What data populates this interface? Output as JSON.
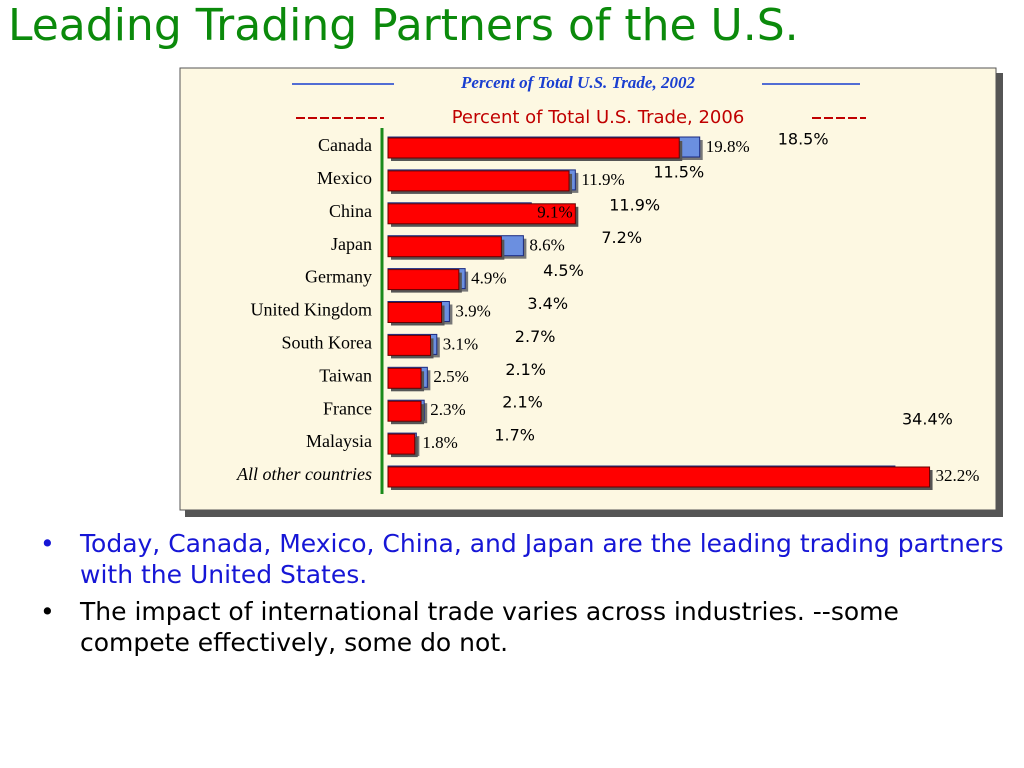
{
  "slide": {
    "title": "Leading Trading Partners of the U.S.",
    "bullets": [
      "Today, Canada, Mexico, China, and Japan are the leading trading partners with the United States.",
      "The impact of international trade varies across industries.  --some compete effectively, some do not."
    ]
  },
  "chart_data": {
    "type": "hbar",
    "categories": [
      "Canada",
      "Mexico",
      "China",
      "Japan",
      "Germany",
      "United Kingdom",
      "South Korea",
      "Taiwan",
      "France",
      "Malaysia",
      "All other countries"
    ],
    "series": [
      {
        "name": "Percent of Total U.S. Trade, 2002",
        "color": "#6b8fe0",
        "values": [
          19.8,
          11.9,
          9.1,
          8.6,
          4.9,
          3.9,
          3.1,
          2.5,
          2.3,
          1.8,
          32.2
        ],
        "value_labels": [
          "19.8%",
          "11.9%",
          "9.1%",
          "8.6%",
          "4.9%",
          "3.9%",
          "3.1%",
          "2.5%",
          "2.3%",
          "1.8%",
          "32.2%"
        ]
      },
      {
        "name": "Percent of Total U.S. Trade, 2006",
        "color": "#ff0000",
        "values": [
          18.5,
          11.5,
          11.9,
          7.2,
          4.5,
          3.4,
          2.7,
          2.1,
          2.1,
          1.7,
          34.4
        ],
        "value_labels": [
          "18.5%",
          "11.5%",
          "11.9%",
          "7.2%",
          "4.5%",
          "3.4%",
          "2.7%",
          "2.1%",
          "2.1%",
          "1.7%",
          "34.4%"
        ]
      }
    ],
    "xlim": [
      0,
      35
    ]
  }
}
